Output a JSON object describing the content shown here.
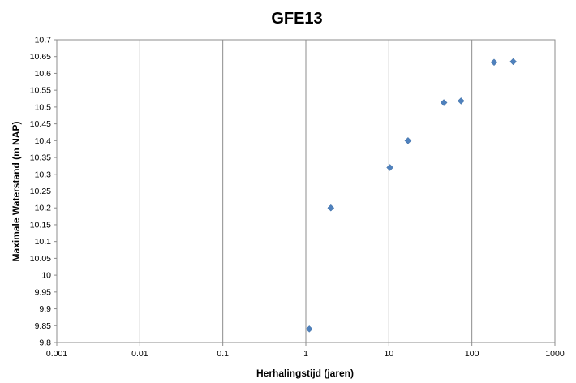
{
  "chart_data": {
    "type": "scatter",
    "title": "GFE13",
    "xlabel": "Herhalingstijd (jaren)",
    "ylabel": "Maximale Waterstand (m NAP)",
    "x_scale": "log",
    "xlim": [
      0.001,
      1000
    ],
    "ylim": [
      9.8,
      10.7
    ],
    "x_ticks": [
      "0.001",
      "0.01",
      "0.1",
      "1",
      "10",
      "100",
      "1000"
    ],
    "y_ticks": [
      "9.8",
      "9.85",
      "9.9",
      "9.95",
      "10",
      "10.05",
      "10.1",
      "10.15",
      "10.2",
      "10.25",
      "10.3",
      "10.35",
      "10.4",
      "10.45",
      "10.5",
      "10.55",
      "10.6",
      "10.65",
      "10.7"
    ],
    "grid": {
      "vertical": true,
      "horizontal": false
    },
    "legend": "none",
    "marker": "diamond",
    "color": "#4f81bd",
    "points": [
      {
        "x": 1.1,
        "y": 9.84
      },
      {
        "x": 2.0,
        "y": 10.2
      },
      {
        "x": 10.3,
        "y": 10.32
      },
      {
        "x": 17.0,
        "y": 10.4
      },
      {
        "x": 46,
        "y": 10.513
      },
      {
        "x": 74,
        "y": 10.518
      },
      {
        "x": 185,
        "y": 10.633
      },
      {
        "x": 315,
        "y": 10.635
      }
    ]
  }
}
